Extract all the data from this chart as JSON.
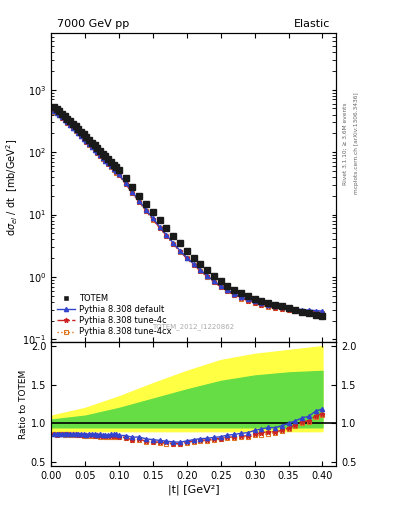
{
  "title_left": "7000 GeV pp",
  "title_right": "Elastic",
  "ylabel_main": "dσ_{el} / dt  [mb/GeV^{2}]",
  "ylabel_ratio": "Ratio to TOTEM",
  "xlabel": "|t| [GeV²]",
  "right_label_top": "Rivet 3.1.10; ≥ 3.6M events",
  "right_label_bot": "mcplots.cern.ch [arXiv:1306.3436]",
  "watermark": "TOTEM_2012_I1220862",
  "xlim": [
    0.0,
    0.42
  ],
  "ylim_main": [
    0.09,
    8000
  ],
  "ylim_ratio": [
    0.45,
    2.05
  ],
  "totem_t": [
    0.004,
    0.008,
    0.012,
    0.016,
    0.02,
    0.024,
    0.028,
    0.032,
    0.036,
    0.04,
    0.044,
    0.048,
    0.052,
    0.056,
    0.06,
    0.064,
    0.068,
    0.072,
    0.076,
    0.08,
    0.084,
    0.088,
    0.092,
    0.096,
    0.1,
    0.11,
    0.12,
    0.13,
    0.14,
    0.15,
    0.16,
    0.17,
    0.18,
    0.19,
    0.2,
    0.21,
    0.22,
    0.23,
    0.24,
    0.25,
    0.26,
    0.27,
    0.28,
    0.29,
    0.3,
    0.31,
    0.32,
    0.33,
    0.34,
    0.35,
    0.36,
    0.37,
    0.38,
    0.39,
    0.4
  ],
  "totem_y": [
    520,
    490,
    450,
    415,
    380,
    345,
    315,
    285,
    258,
    235,
    212,
    192,
    174,
    157,
    142,
    128,
    116,
    105,
    95,
    86,
    78,
    70,
    63,
    57,
    52,
    38,
    28,
    20,
    15,
    11,
    8.2,
    6.1,
    4.6,
    3.5,
    2.65,
    2.05,
    1.62,
    1.3,
    1.05,
    0.87,
    0.73,
    0.63,
    0.55,
    0.5,
    0.45,
    0.41,
    0.38,
    0.36,
    0.34,
    0.32,
    0.3,
    0.28,
    0.27,
    0.25,
    0.24
  ],
  "pythia_t": [
    0.004,
    0.008,
    0.012,
    0.016,
    0.02,
    0.024,
    0.028,
    0.032,
    0.036,
    0.04,
    0.044,
    0.048,
    0.052,
    0.056,
    0.06,
    0.064,
    0.068,
    0.072,
    0.076,
    0.08,
    0.084,
    0.088,
    0.092,
    0.096,
    0.1,
    0.11,
    0.12,
    0.13,
    0.14,
    0.15,
    0.16,
    0.17,
    0.18,
    0.19,
    0.2,
    0.21,
    0.22,
    0.23,
    0.24,
    0.25,
    0.26,
    0.27,
    0.28,
    0.29,
    0.3,
    0.31,
    0.32,
    0.33,
    0.34,
    0.35,
    0.36,
    0.37,
    0.38,
    0.39,
    0.4
  ],
  "default_y": [
    450,
    420,
    390,
    360,
    328,
    300,
    272,
    247,
    224,
    203,
    183,
    165,
    149,
    135,
    122,
    110,
    99,
    90,
    81,
    73,
    66,
    60,
    54,
    49,
    44,
    32,
    23,
    16.5,
    12,
    8.7,
    6.4,
    4.7,
    3.5,
    2.65,
    2.05,
    1.62,
    1.3,
    1.05,
    0.86,
    0.72,
    0.62,
    0.54,
    0.48,
    0.44,
    0.41,
    0.38,
    0.36,
    0.34,
    0.33,
    0.32,
    0.31,
    0.3,
    0.295,
    0.29,
    0.285
  ],
  "tune4c_y": [
    448,
    418,
    388,
    358,
    326,
    298,
    270,
    245,
    222,
    201,
    181,
    163,
    147,
    133,
    120,
    108,
    98,
    88,
    80,
    72,
    65,
    59,
    53,
    48,
    43,
    31,
    22,
    16,
    11.5,
    8.4,
    6.2,
    4.6,
    3.4,
    2.58,
    2.0,
    1.58,
    1.27,
    1.02,
    0.84,
    0.7,
    0.6,
    0.52,
    0.46,
    0.42,
    0.39,
    0.36,
    0.34,
    0.32,
    0.31,
    0.3,
    0.295,
    0.285,
    0.28,
    0.275,
    0.27
  ],
  "tune4cx_y": [
    446,
    416,
    386,
    356,
    324,
    296,
    268,
    243,
    220,
    199,
    179,
    162,
    146,
    132,
    119,
    107,
    97,
    87,
    79,
    71,
    64,
    58,
    52,
    47,
    43,
    31,
    22,
    15.8,
    11.4,
    8.3,
    6.1,
    4.5,
    3.38,
    2.56,
    1.98,
    1.56,
    1.25,
    1.01,
    0.83,
    0.69,
    0.59,
    0.51,
    0.45,
    0.41,
    0.38,
    0.35,
    0.33,
    0.315,
    0.305,
    0.295,
    0.29,
    0.28,
    0.275,
    0.27,
    0.265
  ],
  "band_t": [
    0.0,
    0.05,
    0.1,
    0.15,
    0.2,
    0.25,
    0.3,
    0.35,
    0.4
  ],
  "band_yellow_lo": [
    0.9,
    0.9,
    0.9,
    0.9,
    0.9,
    0.9,
    0.9,
    0.9,
    0.9
  ],
  "band_yellow_hi": [
    1.1,
    1.2,
    1.35,
    1.52,
    1.68,
    1.82,
    1.9,
    1.95,
    2.0
  ],
  "band_green_lo": [
    0.95,
    0.95,
    0.95,
    0.95,
    0.95,
    0.95,
    0.95,
    0.95,
    0.95
  ],
  "band_green_hi": [
    1.05,
    1.1,
    1.2,
    1.32,
    1.44,
    1.55,
    1.62,
    1.66,
    1.68
  ],
  "color_totem": "#1a1a1a",
  "color_default": "#3344cc",
  "color_tune4c": "#cc2222",
  "color_tune4cx": "#dd7722",
  "color_yellow": "#ffff44",
  "color_green": "#66dd44",
  "bg_color": "#ffffff"
}
